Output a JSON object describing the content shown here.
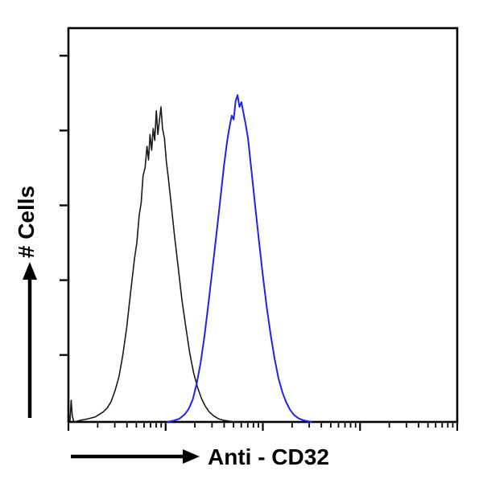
{
  "chart_data": {
    "type": "line",
    "subtype": "flow-cytometry-histogram",
    "title": "",
    "xlabel": "Anti - CD32",
    "ylabel": "# Cells",
    "x_axis": {
      "scale": "log",
      "decades": 4,
      "tick_labels_shown": false
    },
    "y_axis": {
      "scale": "linear",
      "tick_labels_shown": false,
      "tick_fractions_from_top": [
        0.07,
        0.26,
        0.45,
        0.64,
        0.83
      ]
    },
    "legend": "none",
    "series": [
      {
        "name": "black-curve-control",
        "color": "#1a1a1a",
        "stroke_width": 1.6,
        "peak_x_fraction": 0.238,
        "peak_height_fraction": 0.8,
        "points": [
          [
            0.004,
            0.0
          ],
          [
            0.007,
            0.055
          ],
          [
            0.01,
            0.015
          ],
          [
            0.014,
            0.0
          ],
          [
            0.03,
            0.004
          ],
          [
            0.05,
            0.008
          ],
          [
            0.07,
            0.013
          ],
          [
            0.09,
            0.026
          ],
          [
            0.1,
            0.036
          ],
          [
            0.11,
            0.052
          ],
          [
            0.12,
            0.08
          ],
          [
            0.13,
            0.115
          ],
          [
            0.14,
            0.17
          ],
          [
            0.15,
            0.24
          ],
          [
            0.16,
            0.33
          ],
          [
            0.17,
            0.415
          ],
          [
            0.176,
            0.455
          ],
          [
            0.182,
            0.525
          ],
          [
            0.187,
            0.555
          ],
          [
            0.192,
            0.625
          ],
          [
            0.197,
            0.645
          ],
          [
            0.202,
            0.7
          ],
          [
            0.206,
            0.665
          ],
          [
            0.21,
            0.73
          ],
          [
            0.214,
            0.69
          ],
          [
            0.218,
            0.745
          ],
          [
            0.222,
            0.715
          ],
          [
            0.226,
            0.79
          ],
          [
            0.23,
            0.73
          ],
          [
            0.234,
            0.765
          ],
          [
            0.238,
            0.8
          ],
          [
            0.242,
            0.745
          ],
          [
            0.247,
            0.72
          ],
          [
            0.252,
            0.66
          ],
          [
            0.257,
            0.62
          ],
          [
            0.262,
            0.575
          ],
          [
            0.272,
            0.48
          ],
          [
            0.282,
            0.395
          ],
          [
            0.292,
            0.31
          ],
          [
            0.302,
            0.24
          ],
          [
            0.312,
            0.175
          ],
          [
            0.322,
            0.125
          ],
          [
            0.332,
            0.088
          ],
          [
            0.342,
            0.06
          ],
          [
            0.352,
            0.04
          ],
          [
            0.362,
            0.026
          ],
          [
            0.374,
            0.015
          ],
          [
            0.386,
            0.008
          ],
          [
            0.4,
            0.004
          ],
          [
            0.42,
            0.001
          ],
          [
            0.435,
            0.0
          ]
        ]
      },
      {
        "name": "blue-curve-anti-cd32",
        "color": "#2222ee",
        "stroke_width": 2.0,
        "peak_x_fraction": 0.435,
        "peak_height_fraction": 0.83,
        "points": [
          [
            0.255,
            0.0
          ],
          [
            0.27,
            0.003
          ],
          [
            0.285,
            0.008
          ],
          [
            0.3,
            0.02
          ],
          [
            0.31,
            0.034
          ],
          [
            0.32,
            0.058
          ],
          [
            0.33,
            0.098
          ],
          [
            0.34,
            0.15
          ],
          [
            0.35,
            0.218
          ],
          [
            0.36,
            0.3
          ],
          [
            0.37,
            0.385
          ],
          [
            0.38,
            0.47
          ],
          [
            0.39,
            0.56
          ],
          [
            0.4,
            0.65
          ],
          [
            0.408,
            0.712
          ],
          [
            0.414,
            0.748
          ],
          [
            0.42,
            0.778
          ],
          [
            0.425,
            0.768
          ],
          [
            0.43,
            0.815
          ],
          [
            0.435,
            0.83
          ],
          [
            0.44,
            0.8
          ],
          [
            0.445,
            0.812
          ],
          [
            0.45,
            0.785
          ],
          [
            0.455,
            0.76
          ],
          [
            0.462,
            0.72
          ],
          [
            0.47,
            0.645
          ],
          [
            0.48,
            0.552
          ],
          [
            0.49,
            0.46
          ],
          [
            0.5,
            0.372
          ],
          [
            0.51,
            0.292
          ],
          [
            0.52,
            0.222
          ],
          [
            0.53,
            0.162
          ],
          [
            0.54,
            0.112
          ],
          [
            0.55,
            0.076
          ],
          [
            0.56,
            0.05
          ],
          [
            0.57,
            0.031
          ],
          [
            0.58,
            0.018
          ],
          [
            0.592,
            0.009
          ],
          [
            0.605,
            0.004
          ],
          [
            0.625,
            0.0
          ]
        ]
      }
    ]
  },
  "colors": {
    "background": "#ffffff",
    "axis": "#000000"
  }
}
